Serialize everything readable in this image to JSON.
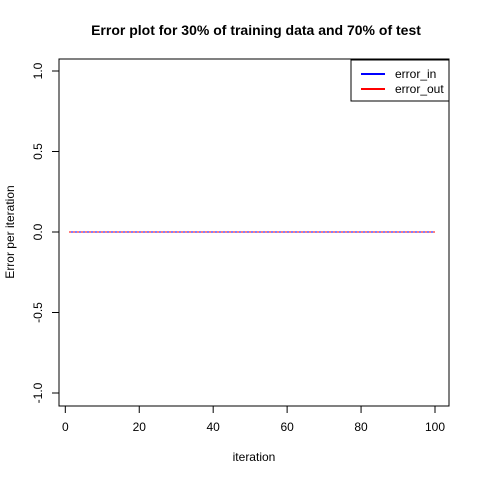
{
  "chart_data": {
    "type": "line",
    "title": "Error plot for 30% of training data and 70% of test",
    "xlabel": "iteration",
    "ylabel": "Error per iteration",
    "xlim": [
      1,
      100
    ],
    "ylim": [
      -1.0,
      1.0
    ],
    "x_ticks": [
      0,
      20,
      40,
      60,
      80,
      100
    ],
    "y_ticks": [
      -1.0,
      -0.5,
      0.0,
      0.5,
      1.0
    ],
    "x_tick_labels": [
      "0",
      "20",
      "40",
      "60",
      "80",
      "100"
    ],
    "y_tick_labels": [
      "-1.0",
      "-0.5",
      "0.0",
      "0.5",
      "1.0"
    ],
    "grid": false,
    "legend_position": "top-right",
    "series": [
      {
        "name": "error_in",
        "color": "#0000ff",
        "x": [
          1,
          100
        ],
        "y": [
          0,
          0
        ]
      },
      {
        "name": "error_out",
        "color": "#ff0000",
        "x": [
          1,
          100
        ],
        "y": [
          0,
          0
        ]
      }
    ]
  }
}
